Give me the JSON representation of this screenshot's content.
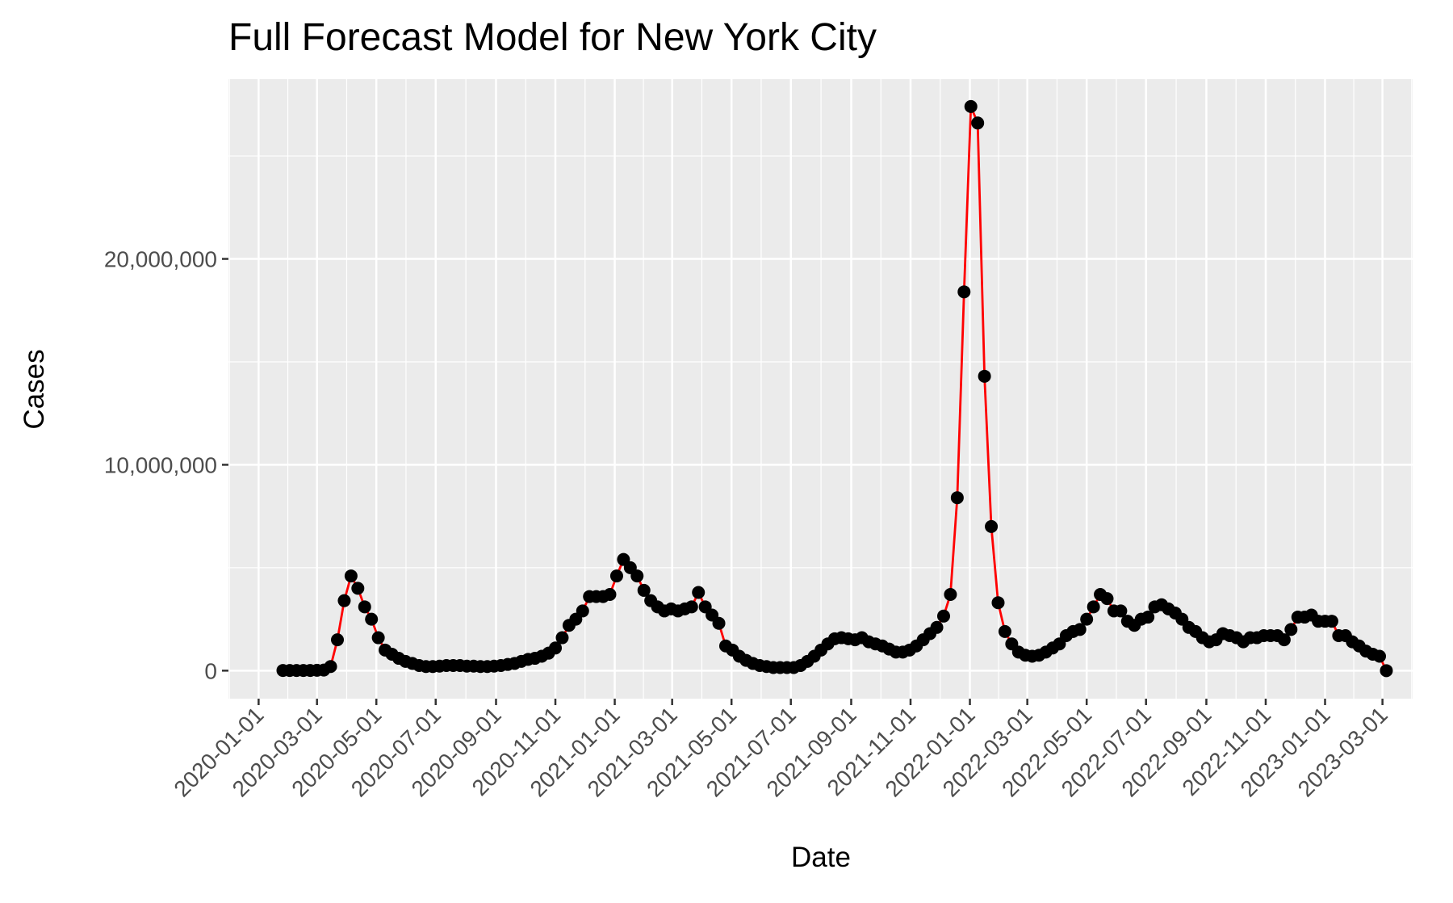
{
  "chart_data": {
    "type": "line",
    "title": "Full Forecast Model for New York City",
    "x_label": "Date",
    "y_label": "Cases",
    "line_color": "#ff0000",
    "point_color": "#000000",
    "grid": true,
    "xlim": [
      "2019-12-01",
      "2023-04-01"
    ],
    "xticks": [
      "2020-01-01",
      "2020-03-01",
      "2020-05-01",
      "2020-07-01",
      "2020-09-01",
      "2020-11-01",
      "2021-01-01",
      "2021-03-01",
      "2021-05-01",
      "2021-07-01",
      "2021-09-01",
      "2021-11-01",
      "2022-01-01",
      "2022-03-01",
      "2022-05-01",
      "2022-07-01",
      "2022-09-01",
      "2022-11-01",
      "2023-01-01",
      "2023-03-01"
    ],
    "ylim": [
      -1360000,
      28730000
    ],
    "yticks": [
      {
        "value": 0,
        "label": "0"
      },
      {
        "value": 10000000,
        "label": "10,000,000"
      },
      {
        "value": 20000000,
        "label": "20,000,000"
      }
    ],
    "x": [
      "2020-01-26",
      "2020-02-02",
      "2020-02-09",
      "2020-02-16",
      "2020-02-23",
      "2020-03-01",
      "2020-03-08",
      "2020-03-15",
      "2020-03-22",
      "2020-03-29",
      "2020-04-05",
      "2020-04-12",
      "2020-04-19",
      "2020-04-26",
      "2020-05-03",
      "2020-05-10",
      "2020-05-17",
      "2020-05-24",
      "2020-05-31",
      "2020-06-07",
      "2020-06-14",
      "2020-06-21",
      "2020-06-28",
      "2020-07-05",
      "2020-07-12",
      "2020-07-19",
      "2020-07-26",
      "2020-08-02",
      "2020-08-09",
      "2020-08-16",
      "2020-08-23",
      "2020-08-30",
      "2020-09-06",
      "2020-09-13",
      "2020-09-20",
      "2020-09-27",
      "2020-10-04",
      "2020-10-11",
      "2020-10-18",
      "2020-10-25",
      "2020-11-01",
      "2020-11-08",
      "2020-11-15",
      "2020-11-22",
      "2020-11-29",
      "2020-12-06",
      "2020-12-13",
      "2020-12-20",
      "2020-12-27",
      "2021-01-03",
      "2021-01-10",
      "2021-01-17",
      "2021-01-24",
      "2021-01-31",
      "2021-02-07",
      "2021-02-14",
      "2021-02-21",
      "2021-02-28",
      "2021-03-07",
      "2021-03-14",
      "2021-03-21",
      "2021-03-28",
      "2021-04-04",
      "2021-04-11",
      "2021-04-18",
      "2021-04-25",
      "2021-05-02",
      "2021-05-09",
      "2021-05-16",
      "2021-05-23",
      "2021-05-30",
      "2021-06-06",
      "2021-06-13",
      "2021-06-20",
      "2021-06-27",
      "2021-07-04",
      "2021-07-11",
      "2021-07-18",
      "2021-07-25",
      "2021-08-01",
      "2021-08-08",
      "2021-08-15",
      "2021-08-22",
      "2021-08-29",
      "2021-09-05",
      "2021-09-12",
      "2021-09-19",
      "2021-09-26",
      "2021-10-03",
      "2021-10-10",
      "2021-10-17",
      "2021-10-24",
      "2021-10-31",
      "2021-11-07",
      "2021-11-14",
      "2021-11-21",
      "2021-11-28",
      "2021-12-05",
      "2021-12-12",
      "2021-12-19",
      "2021-12-26",
      "2022-01-02",
      "2022-01-09",
      "2022-01-16",
      "2022-01-23",
      "2022-01-30",
      "2022-02-06",
      "2022-02-13",
      "2022-02-20",
      "2022-02-27",
      "2022-03-06",
      "2022-03-13",
      "2022-03-20",
      "2022-03-27",
      "2022-04-03",
      "2022-04-10",
      "2022-04-17",
      "2022-04-24",
      "2022-05-01",
      "2022-05-08",
      "2022-05-15",
      "2022-05-22",
      "2022-05-29",
      "2022-06-05",
      "2022-06-12",
      "2022-06-19",
      "2022-06-26",
      "2022-07-03",
      "2022-07-10",
      "2022-07-17",
      "2022-07-24",
      "2022-07-31",
      "2022-08-07",
      "2022-08-14",
      "2022-08-21",
      "2022-08-28",
      "2022-09-04",
      "2022-09-11",
      "2022-09-18",
      "2022-09-25",
      "2022-10-02",
      "2022-10-09",
      "2022-10-16",
      "2022-10-23",
      "2022-10-30",
      "2022-11-06",
      "2022-11-13",
      "2022-11-20",
      "2022-11-27",
      "2022-12-04",
      "2022-12-11",
      "2022-12-18",
      "2022-12-25",
      "2023-01-01",
      "2023-01-08",
      "2023-01-15",
      "2023-01-22",
      "2023-01-29",
      "2023-02-05",
      "2023-02-12",
      "2023-02-19",
      "2023-02-26",
      "2023-03-05"
    ],
    "values": [
      10000,
      10000,
      10000,
      10000,
      10000,
      20000,
      30000,
      200000,
      1500000,
      3400000,
      4600000,
      4000000,
      3100000,
      2500000,
      1600000,
      1000000,
      800000,
      600000,
      450000,
      350000,
      250000,
      200000,
      200000,
      220000,
      250000,
      250000,
      250000,
      220000,
      220000,
      200000,
      200000,
      220000,
      250000,
      300000,
      350000,
      450000,
      550000,
      600000,
      700000,
      850000,
      1100000,
      1600000,
      2200000,
      2500000,
      2900000,
      3600000,
      3600000,
      3600000,
      3700000,
      4600000,
      5400000,
      5000000,
      4600000,
      3900000,
      3400000,
      3100000,
      2900000,
      3000000,
      2900000,
      3000000,
      3100000,
      3800000,
      3100000,
      2700000,
      2300000,
      1200000,
      1000000,
      700000,
      500000,
      350000,
      250000,
      200000,
      150000,
      150000,
      150000,
      150000,
      250000,
      450000,
      700000,
      1000000,
      1300000,
      1550000,
      1600000,
      1550000,
      1500000,
      1600000,
      1400000,
      1300000,
      1200000,
      1050000,
      900000,
      900000,
      1000000,
      1200000,
      1500000,
      1800000,
      2100000,
      2650000,
      3700000,
      8400000,
      18400000,
      27400000,
      26600000,
      14300000,
      7000000,
      3300000,
      1900000,
      1300000,
      900000,
      750000,
      700000,
      750000,
      900000,
      1100000,
      1300000,
      1700000,
      1900000,
      2000000,
      2500000,
      3100000,
      3700000,
      3500000,
      2900000,
      2900000,
      2400000,
      2200000,
      2500000,
      2600000,
      3100000,
      3200000,
      3000000,
      2800000,
      2500000,
      2100000,
      1900000,
      1600000,
      1400000,
      1500000,
      1800000,
      1700000,
      1600000,
      1400000,
      1600000,
      1600000,
      1700000,
      1700000,
      1700000,
      1500000,
      2000000,
      2600000,
      2600000,
      2700000,
      2400000,
      2400000,
      2400000,
      1700000,
      1700000,
      1400000,
      1200000,
      950000,
      800000,
      700000,
      0
    ]
  }
}
